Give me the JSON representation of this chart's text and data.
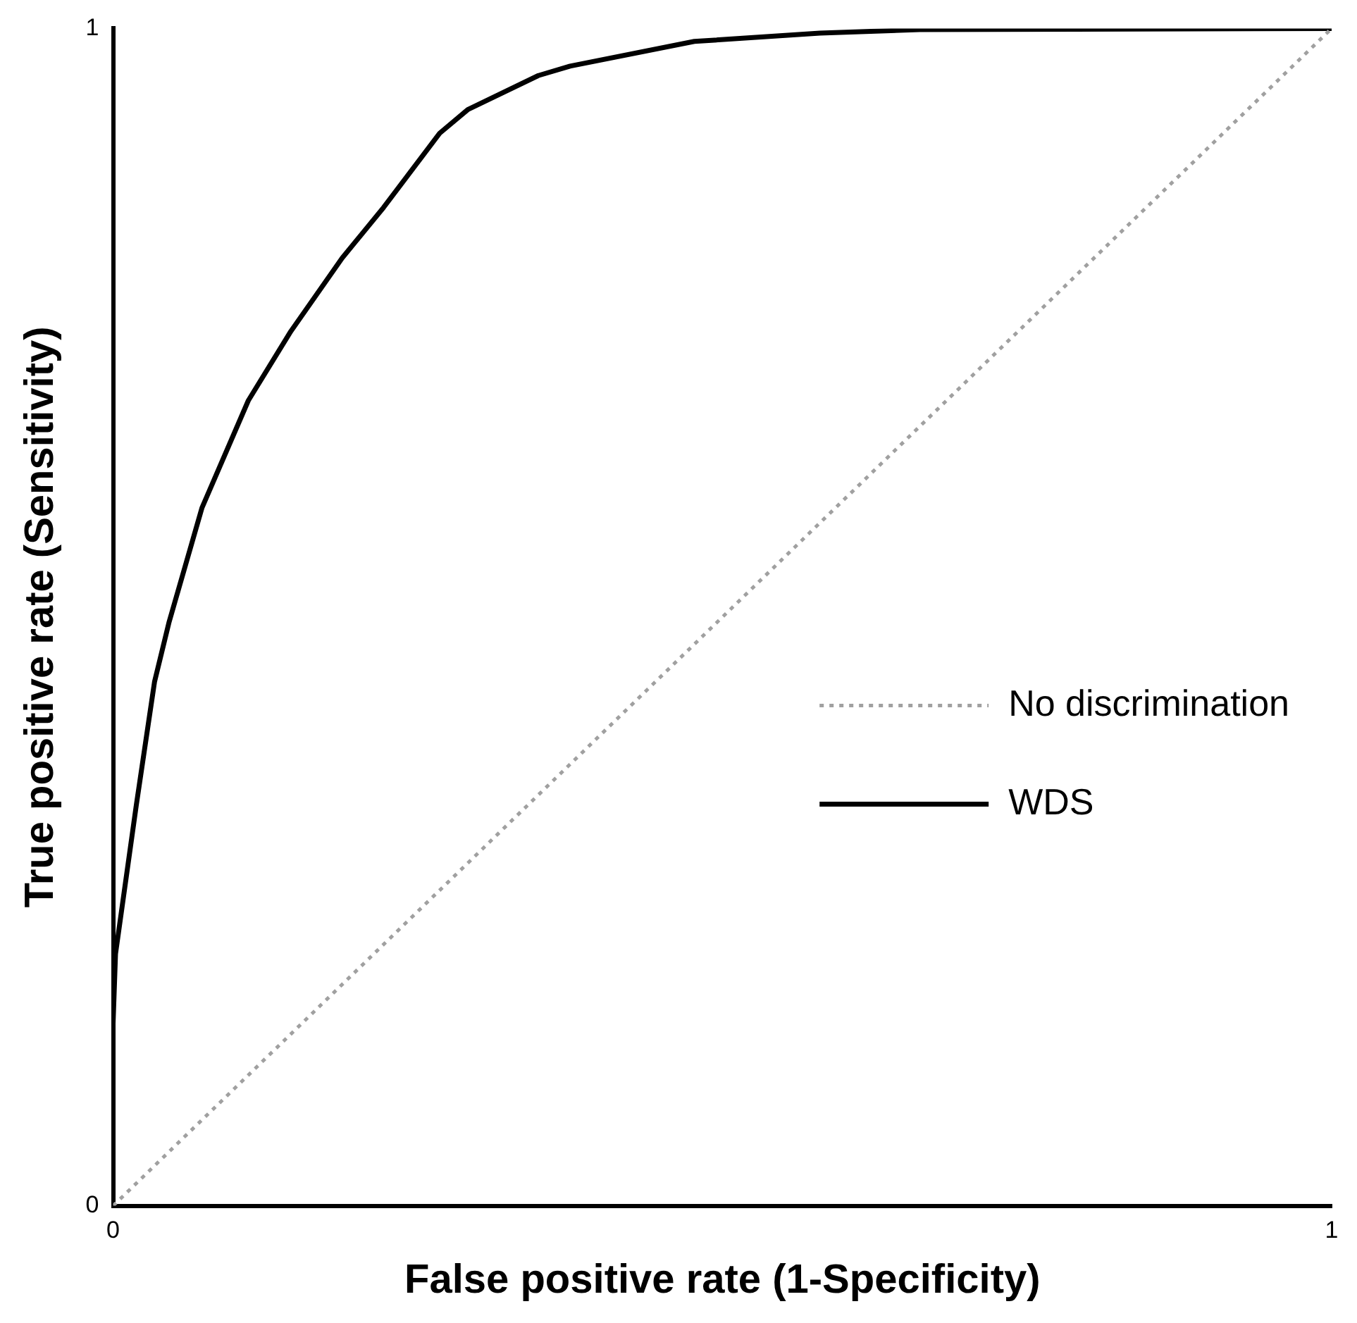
{
  "chart_data": {
    "type": "line",
    "xlabel": "False positive rate (1-Specificity)",
    "ylabel": "True positive rate (Sensitivity)",
    "xlim": [
      0,
      1
    ],
    "ylim": [
      0,
      1
    ],
    "xticks": [
      0,
      1
    ],
    "yticks": [
      0,
      1
    ],
    "grid": false,
    "legend": "bottom right",
    "marker": "none",
    "series": [
      {
        "name": "No discrimination",
        "color": "#a0a0a0",
        "line_style": "dotted",
        "x": [
          0,
          1
        ],
        "values": [
          0,
          1
        ]
      },
      {
        "name": "WDS",
        "color": "#000000",
        "line_style": "solid",
        "x": [
          0,
          0,
          0.002,
          0.019,
          0.034,
          0.046,
          0.073,
          0.111,
          0.146,
          0.188,
          0.222,
          0.268,
          0.291,
          0.349,
          0.375,
          0.477,
          0.58,
          0.662,
          1
        ],
        "values": [
          0,
          0.155,
          0.214,
          0.34,
          0.445,
          0.496,
          0.593,
          0.684,
          0.743,
          0.805,
          0.848,
          0.911,
          0.931,
          0.96,
          0.968,
          0.989,
          0.996,
          0.999,
          1
        ]
      }
    ]
  }
}
